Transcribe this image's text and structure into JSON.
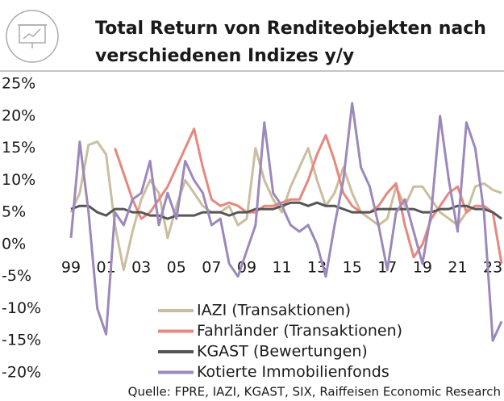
{
  "chart_data": {
    "type": "line",
    "title": [
      "Total Return von Renditeobjekten nach",
      "verschiedenen Indizes y/y"
    ],
    "source": "Quelle: FPRE, IAZI, KGAST, SIX, Raiffeisen Economic Research",
    "x": [
      1999,
      1999.5,
      2000,
      2000.5,
      2001,
      2001.5,
      2002,
      2002.5,
      2003,
      2003.5,
      2004,
      2004.5,
      2005,
      2005.5,
      2006,
      2006.5,
      2007,
      2007.5,
      2008,
      2008.5,
      2009,
      2009.5,
      2010,
      2010.5,
      2011,
      2011.5,
      2012,
      2012.5,
      2013,
      2013.5,
      2014,
      2014.5,
      2015,
      2015.5,
      2016,
      2016.5,
      2017,
      2017.5,
      2018,
      2018.5,
      2019,
      2019.5,
      2020,
      2020.5,
      2021,
      2021.5,
      2022,
      2022.5,
      2023,
      2023.5
    ],
    "series": [
      {
        "name": "IAZI (Transaktionen)",
        "color": "#cbbd9f",
        "values": [
          5,
          8,
          15.5,
          16,
          14,
          3,
          -4,
          2,
          7,
          10,
          8,
          1,
          6,
          10,
          8,
          6,
          5,
          5,
          6,
          3,
          4,
          15,
          10,
          7,
          5,
          9,
          12,
          15,
          10,
          6,
          8,
          12,
          8,
          5,
          4,
          3,
          4,
          9,
          6,
          9,
          9,
          7,
          5,
          4,
          3,
          5,
          9,
          9.5,
          8.5,
          8
        ]
      },
      {
        "name": "Fahrländer (Transaktionen)",
        "color": "#e8877c",
        "values": [
          null,
          null,
          null,
          null,
          null,
          15,
          11,
          7,
          4,
          5,
          7,
          9,
          12,
          15,
          18,
          12,
          7,
          6,
          6.5,
          6,
          5,
          5,
          6,
          6,
          6.5,
          7,
          7,
          10,
          14,
          17,
          13,
          8,
          6,
          5,
          5,
          6,
          8,
          9.5,
          3,
          -2,
          0,
          4,
          6,
          8,
          9,
          5,
          6,
          6,
          5,
          -3
        ]
      },
      {
        "name": "KGAST (Bewertungen)",
        "color": "#555555",
        "values": [
          5.5,
          6,
          6,
          5,
          4.5,
          5.5,
          5.5,
          5,
          5,
          4.5,
          4.5,
          4,
          4.5,
          4.5,
          4.5,
          5,
          5,
          5,
          4.5,
          5,
          5,
          5.5,
          5.5,
          5.5,
          6,
          6.5,
          6.5,
          6,
          6.5,
          6,
          6,
          5.5,
          5,
          5,
          5,
          5.5,
          5.5,
          5.5,
          5.5,
          5.5,
          5,
          5,
          5.5,
          5.5,
          6,
          6,
          5.5,
          5.5,
          5,
          4
        ]
      },
      {
        "name": "Kotierte Immobilienfonds",
        "color": "#9c88ba",
        "values": [
          1,
          16,
          5,
          -10,
          -14,
          5,
          3,
          7,
          8,
          13,
          3,
          8,
          4,
          13,
          10,
          8,
          3,
          4,
          -3,
          -5,
          -1,
          3,
          19,
          8,
          6,
          3,
          2,
          3,
          0,
          -5,
          3,
          10,
          22,
          12,
          9,
          3,
          -4,
          5,
          7,
          2,
          -3,
          5,
          20,
          10,
          2,
          19,
          15,
          5,
          -15,
          -12
        ]
      }
    ],
    "xlim": [
      1999,
      2023.5
    ],
    "xticks": [
      {
        "value": 1999,
        "label": "99"
      },
      {
        "value": 2001,
        "label": "01"
      },
      {
        "value": 2003,
        "label": "03"
      },
      {
        "value": 2005,
        "label": "05"
      },
      {
        "value": 2007,
        "label": "07"
      },
      {
        "value": 2009,
        "label": "09"
      },
      {
        "value": 2011,
        "label": "11"
      },
      {
        "value": 2013,
        "label": "13"
      },
      {
        "value": 2015,
        "label": "15"
      },
      {
        "value": 2017,
        "label": "17"
      },
      {
        "value": 2019,
        "label": "19"
      },
      {
        "value": 2021,
        "label": "21"
      },
      {
        "value": 2023,
        "label": "23"
      }
    ],
    "ylim": [
      -20,
      25
    ],
    "yticks": [
      {
        "value": 25,
        "label": "25%"
      },
      {
        "value": 20,
        "label": "20%"
      },
      {
        "value": 15,
        "label": "15%"
      },
      {
        "value": 10,
        "label": "10%"
      },
      {
        "value": 5,
        "label": "5%"
      },
      {
        "value": 0,
        "label": "0%"
      },
      {
        "value": -5,
        "label": "-5%"
      },
      {
        "value": -10,
        "label": "-10%"
      },
      {
        "value": -15,
        "label": "-15%"
      },
      {
        "value": -20,
        "label": "-20%"
      }
    ],
    "legend": "bottom"
  }
}
